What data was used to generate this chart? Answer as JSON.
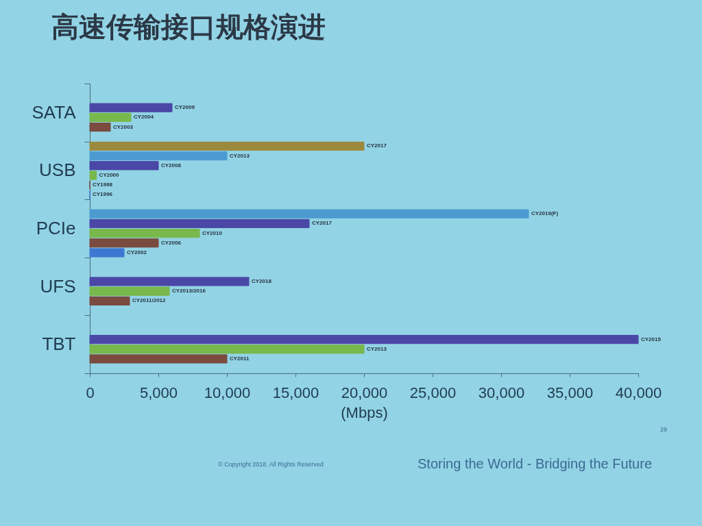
{
  "chart_data": {
    "type": "bar",
    "orientation": "horizontal",
    "title": "高速传输接口规格演进",
    "xlabel": "(Mbps)",
    "categories": [
      "SATA",
      "USB",
      "PCIe",
      "UFS",
      "TBT"
    ],
    "series": [
      {
        "color": "#9b8a3e",
        "values": [
          null,
          20000,
          null,
          null,
          null
        ],
        "value_labels": [
          null,
          "CY2017",
          null,
          null,
          null
        ]
      },
      {
        "color": "#4b9bd1",
        "values": [
          null,
          10000,
          32000,
          null,
          null
        ],
        "value_labels": [
          null,
          "CY2013",
          "CY2019(F)",
          null,
          null
        ]
      },
      {
        "color": "#4a47a6",
        "values": [
          6000,
          5000,
          16000,
          11600,
          40000
        ],
        "value_labels": [
          "CY2009",
          "CY2008",
          "CY2017",
          "CY2018",
          "CY2015"
        ]
      },
      {
        "color": "#79b84c",
        "values": [
          3000,
          480,
          8000,
          5800,
          20000
        ],
        "value_labels": [
          "CY2004",
          "CY2000",
          "CY2010",
          "CY2013/2016",
          "CY2013"
        ]
      },
      {
        "color": "#7a4b3e",
        "values": [
          1500,
          0,
          5000,
          2900,
          10000
        ],
        "value_labels": [
          "CY2003",
          "CY1998",
          "CY2006",
          "CY2011/2012",
          "CY2011"
        ]
      },
      {
        "color": "#3c78d2",
        "values": [
          null,
          0,
          2500,
          null,
          null
        ],
        "value_labels": [
          null,
          "CY1996",
          "CY2002",
          null,
          null
        ]
      }
    ],
    "xlim": [
      0,
      40000
    ],
    "xticks": [
      0,
      {
        "value": 5000,
        "label": "5,000"
      },
      {
        "value": 10000,
        "label": "10,000"
      },
      {
        "value": 15000,
        "label": "15,000"
      },
      {
        "value": 20000,
        "label": "20,000"
      },
      {
        "value": 25000,
        "label": "25,000"
      },
      {
        "value": 30000,
        "label": "30,000"
      },
      {
        "value": 35000,
        "label": "35,000"
      },
      {
        "value": 40000,
        "label": "40,000"
      }
    ],
    "annotations": [
      "29",
      "© Copyright 2018. All Rights Reserved",
      "Storing the World - Bridging the Future"
    ]
  }
}
